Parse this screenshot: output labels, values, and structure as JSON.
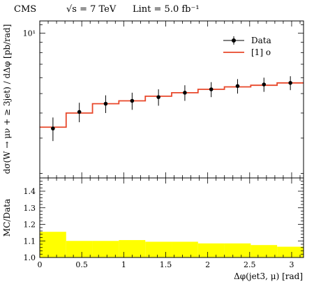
{
  "header": {
    "experiment": "CMS",
    "energy": "√s = 7 TeV",
    "lumi": "Lint = 5.0 fb⁻¹"
  },
  "chart_data": [
    {
      "type": "line",
      "panel": "main",
      "ylabel": "dσ(W → μν + ≥ 3jet) / dΔφ [pb/rad]",
      "yscale": "log",
      "ylim": [
        1.9,
        11.5
      ],
      "xlim": [
        0,
        3.1416
      ],
      "ytick_labels": [
        "10¹"
      ],
      "ytick_values": [
        10
      ],
      "legend": {
        "placement": "top-right",
        "entries": [
          "Data",
          "[1] o"
        ]
      },
      "bin_edges": [
        0,
        0.314,
        0.628,
        0.942,
        1.257,
        1.571,
        1.885,
        2.199,
        2.513,
        2.827,
        3.1416
      ],
      "series": [
        {
          "name": "Data",
          "style": "points-with-errors",
          "color": "#000000",
          "x": [
            0.157,
            0.471,
            0.785,
            1.1,
            1.414,
            1.728,
            2.042,
            2.356,
            2.67,
            2.985
          ],
          "y": [
            3.35,
            4.05,
            4.45,
            4.6,
            4.8,
            5.05,
            5.25,
            5.45,
            5.55,
            5.65
          ],
          "err": [
            0.45,
            0.45,
            0.45,
            0.45,
            0.45,
            0.45,
            0.45,
            0.45,
            0.45,
            0.45
          ]
        },
        {
          "name": "[1] o",
          "style": "step",
          "color": "#e8472a",
          "y": [
            3.4,
            4.0,
            4.45,
            4.6,
            4.85,
            5.05,
            5.25,
            5.4,
            5.5,
            5.65
          ]
        }
      ]
    },
    {
      "type": "area",
      "panel": "ratio",
      "xlabel": "Δφ(jet3, μ) [rad]",
      "ylabel": "MC/Data",
      "xlim": [
        0,
        3.1416
      ],
      "ylim": [
        1.0,
        1.48
      ],
      "xtick_labels": [
        "0",
        "0.5",
        "1",
        "1.5",
        "2",
        "2.5",
        "3"
      ],
      "xtick_values": [
        0,
        0.5,
        1,
        1.5,
        2,
        2.5,
        3
      ],
      "ytick_labels": [
        "1.0",
        "1.1",
        "1.2",
        "1.3",
        "1.4"
      ],
      "ytick_values": [
        1.0,
        1.1,
        1.2,
        1.3,
        1.4
      ],
      "band_color": "#ffff00",
      "series": [
        {
          "name": "MC/Data",
          "y": [
            1.155,
            1.1,
            1.1,
            1.105,
            1.095,
            1.095,
            1.085,
            1.085,
            1.075,
            1.065
          ]
        }
      ]
    }
  ]
}
